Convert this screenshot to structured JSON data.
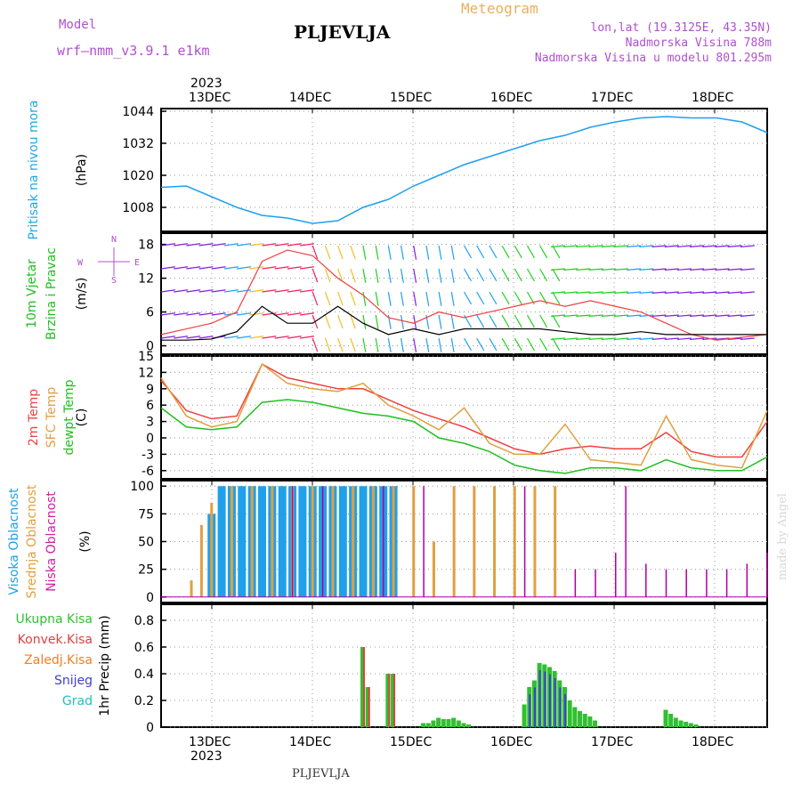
{
  "header": {
    "model_label": "Model",
    "model_name": "wrf–nmm_v3.9.1  e1km",
    "station": "PLJEVLJA",
    "meteogram": "Meteogram",
    "coords": "lon,lat (19.3125E, 43.35N)",
    "elevation": "Nadmorska Visina 788m",
    "model_elevation": "Nadmorska Visina u modelu 801.295m",
    "footer_station": "PLJEVLJA",
    "credit": "made by Angel"
  },
  "colors": {
    "pressure": "#1ea0f0",
    "temp2m": "#f04040",
    "sfc": "#e0a040",
    "dew": "#20c020",
    "high_cloud": "#20a0e8",
    "mid_cloud": "#e0a040",
    "low_cloud": "#b000a0",
    "total_precip": "#30c030",
    "conv_precip": "#e04040",
    "snow": "#4040d0",
    "header_purple": "#b050d0",
    "header_orange": "#e8b060"
  },
  "chart_data": [
    {
      "type": "line",
      "id": "pressure",
      "ylabel": "Pritisak na nivou mora",
      "unit": "(hPa)",
      "x_labels": [
        "13DEC",
        "14DEC",
        "15DEC",
        "16DEC",
        "17DEC",
        "18DEC"
      ],
      "year_label": "2023",
      "yticks": [
        1008,
        1020,
        1032,
        1044
      ],
      "ylim": [
        999,
        1045
      ],
      "x": [
        0,
        0.5,
        1,
        1.5,
        2,
        2.5,
        3,
        3.5,
        4,
        4.5,
        5,
        5.5,
        6,
        6.5,
        7,
        7.5,
        8,
        8.5,
        9,
        9.5,
        10,
        10.5,
        11,
        11.5,
        12
      ],
      "values": [
        1015.5,
        1016,
        1012,
        1008,
        1005,
        1004,
        1002,
        1003,
        1008,
        1011,
        1016,
        1020,
        1024,
        1027,
        1030,
        1033,
        1035,
        1038,
        1040,
        1041.5,
        1042,
        1041.5,
        1041.5,
        1040,
        1036
      ]
    },
    {
      "type": "line",
      "id": "wind",
      "ylabel": "10m Vjetar Brzina i Pravac",
      "unit": "(m/s)",
      "compass": [
        "N",
        "E",
        "W",
        "S"
      ],
      "yticks": [
        0,
        6,
        12,
        18
      ],
      "ylim": [
        -1.5,
        20
      ],
      "series": [
        {
          "x": [
            0,
            0.5,
            1,
            1.5,
            2,
            2.5,
            3,
            3.5,
            4,
            4.5,
            5,
            5.5,
            6,
            6.5,
            7,
            7.5,
            8,
            8.5,
            9,
            9.5,
            10,
            10.5,
            11,
            11.5,
            12
          ],
          "values": [
            1,
            1,
            1.2,
            2.5,
            7,
            4,
            4,
            7,
            4,
            2,
            3,
            2,
            3,
            3,
            3,
            3,
            2.5,
            2,
            2,
            2.5,
            2,
            2,
            2,
            2,
            2
          ]
        },
        {
          "x": [
            0,
            0.5,
            1,
            1.5,
            2,
            2.5,
            3,
            3.5,
            4,
            4.5,
            5,
            5.5,
            6,
            6.5,
            7,
            7.5,
            8,
            8.5,
            9,
            9.5,
            10,
            10.5,
            11,
            11.5,
            12
          ],
          "values": [
            2,
            3,
            4,
            6,
            15,
            17,
            16,
            12,
            9,
            5,
            4,
            6,
            5,
            6,
            7,
            8,
            7,
            8,
            7,
            6,
            4,
            2,
            1,
            1.5,
            2
          ]
        }
      ]
    },
    {
      "type": "line",
      "id": "temperature",
      "ylabel": "2m Temp / SFC Temp / dewpt Temp",
      "unit": "(C)",
      "yticks": [
        -6,
        -3,
        0,
        3,
        6,
        9,
        12,
        15
      ],
      "ylim": [
        -7.5,
        15
      ],
      "series": [
        {
          "name": "2m Temp",
          "x": [
            0,
            0.5,
            1,
            1.5,
            2,
            2.5,
            3,
            3.5,
            4,
            4.5,
            5,
            5.5,
            6,
            6.5,
            7,
            7.5,
            8,
            8.5,
            9,
            9.5,
            10,
            10.5,
            11,
            11.5,
            12
          ],
          "values": [
            10.5,
            5,
            3.5,
            4,
            13.5,
            11,
            10,
            9,
            9,
            7,
            5,
            3.5,
            2,
            0,
            -2,
            -3,
            -2,
            -1.5,
            -2,
            -2,
            1,
            -2.5,
            -3.5,
            -3.5,
            3
          ]
        },
        {
          "name": "SFC Temp",
          "x": [
            0,
            0.5,
            1,
            1.5,
            2,
            2.5,
            3,
            3.5,
            4,
            4.5,
            5,
            5.5,
            6,
            6.5,
            7,
            7.5,
            8,
            8.5,
            9,
            9.5,
            10,
            10.5,
            11,
            11.5,
            12
          ],
          "values": [
            11,
            4,
            2,
            3,
            13.5,
            10,
            9,
            8.5,
            10,
            6,
            4,
            1.5,
            5.5,
            -1,
            -3,
            -3,
            2.5,
            -4,
            -4.5,
            -5,
            4,
            -4,
            -5,
            -5.5,
            5
          ]
        },
        {
          "name": "dewpt Temp",
          "x": [
            0,
            0.5,
            1,
            1.5,
            2,
            2.5,
            3,
            3.5,
            4,
            4.5,
            5,
            5.5,
            6,
            6.5,
            7,
            7.5,
            8,
            8.5,
            9,
            9.5,
            10,
            10.5,
            11,
            11.5,
            12
          ],
          "values": [
            5.5,
            2,
            1.5,
            2,
            6.5,
            7,
            6.5,
            5.5,
            4.5,
            4,
            3,
            0,
            -1,
            -2.5,
            -5,
            -6,
            -6.5,
            -5.5,
            -5.5,
            -6,
            -4,
            -5.5,
            -6,
            -6,
            -3.5
          ]
        }
      ]
    },
    {
      "type": "bar",
      "id": "cloud",
      "ylabel": "Visoka Oblacnost / Srednja Oblacnost / Niska Oblacnost",
      "unit": "(%)",
      "yticks": [
        0,
        25,
        50,
        75,
        100
      ],
      "ylim": [
        -5,
        105
      ],
      "series": [
        {
          "name": "Visoka Oblacnost",
          "x": [
            0.8,
            1.0,
            1.2,
            1.4,
            1.6,
            1.8,
            2.0,
            2.2,
            2.4,
            2.6,
            2.8,
            3.0,
            3.2,
            3.4,
            3.6,
            3.8,
            4.0,
            4.2,
            4.4,
            4.6
          ],
          "values": [
            0,
            75,
            100,
            100,
            100,
            100,
            100,
            100,
            100,
            100,
            100,
            100,
            100,
            100,
            100,
            100,
            100,
            100,
            100,
            100
          ]
        },
        {
          "name": "Srednja Oblacnost",
          "x": [
            0.6,
            0.8,
            1.0,
            1.4,
            1.8,
            2.2,
            2.6,
            3.0,
            3.4,
            3.8,
            4.2,
            4.6,
            5.0,
            5.4,
            5.8,
            6.2,
            6.6,
            7.0,
            7.4,
            7.8
          ],
          "values": [
            15,
            65,
            85,
            100,
            100,
            100,
            100,
            100,
            100,
            100,
            100,
            100,
            100,
            50,
            100,
            100,
            100,
            100,
            100,
            100
          ]
        },
        {
          "name": "Niska Oblacnost",
          "x": [
            2.6,
            3.2,
            4.4,
            5.2,
            7.2,
            8.2,
            8.6,
            9.0,
            9.2,
            9.6,
            10.0,
            10.4,
            10.8,
            11.2,
            11.6,
            12.0
          ],
          "values": [
            100,
            100,
            100,
            100,
            100,
            25,
            25,
            40,
            100,
            30,
            25,
            25,
            25,
            25,
            30,
            40
          ]
        }
      ]
    },
    {
      "type": "bar",
      "id": "precip",
      "ylabel": "1hr Precip",
      "unit": "(mm)",
      "legend": [
        "Ukupna Kisa",
        "Konvek.Kisa",
        "Zaledj.Kisa",
        "Snijeg",
        "Grad"
      ],
      "yticks": [
        0,
        0.2,
        0.4,
        0.6,
        0.8
      ],
      "ylim": [
        0,
        0.92
      ],
      "x": [
        4.0,
        4.1,
        4.5,
        4.6,
        5.2,
        5.3,
        5.4,
        5.5,
        5.6,
        5.7,
        5.8,
        5.9,
        6.0,
        6.1,
        7.2,
        7.3,
        7.4,
        7.5,
        7.6,
        7.7,
        7.8,
        7.9,
        8.0,
        8.1,
        8.2,
        8.3,
        8.4,
        8.5,
        8.6,
        10.0,
        10.1,
        10.2,
        10.3,
        10.4,
        10.5,
        10.6
      ],
      "values": [
        0.6,
        0.3,
        0.4,
        0.4,
        0.03,
        0.03,
        0.05,
        0.07,
        0.06,
        0.06,
        0.07,
        0.05,
        0.03,
        0.02,
        0.17,
        0.3,
        0.35,
        0.48,
        0.47,
        0.45,
        0.42,
        0.35,
        0.3,
        0.2,
        0.15,
        0.12,
        0.1,
        0.08,
        0.05,
        0.13,
        0.1,
        0.07,
        0.05,
        0.04,
        0.03,
        0.02
      ]
    }
  ]
}
